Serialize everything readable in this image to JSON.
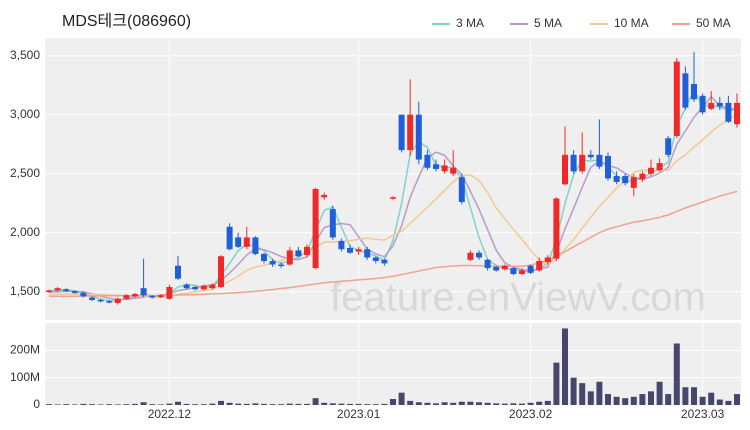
{
  "chart_data": [
    {
      "type": "candlestick",
      "title": "MDS테크(086960)",
      "watermark": "feature.enViewV.com",
      "up_color": "#f02828",
      "down_color": "#1f5fd8",
      "grid": true,
      "ylim": [
        1260,
        3650
      ],
      "yticks": [
        {
          "value": 1500,
          "label": "1,500"
        },
        {
          "value": 2000,
          "label": "2,000"
        },
        {
          "value": 2500,
          "label": "2,500"
        },
        {
          "value": 3000,
          "label": "3,000"
        },
        {
          "value": 3500,
          "label": "3,500"
        }
      ],
      "open": [
        1500,
        1510,
        1520,
        1505,
        1490,
        1450,
        1430,
        1420,
        1405,
        1440,
        1460,
        1530,
        1465,
        1455,
        1440,
        1720,
        1560,
        1540,
        1520,
        1530,
        1540,
        2050,
        1960,
        1880,
        1960,
        1820,
        1760,
        1730,
        1730,
        1850,
        1810,
        1700,
        2300,
        2200,
        1930,
        1870,
        1840,
        1860,
        1790,
        1770,
        2290,
        3000,
        2700,
        3000,
        2660,
        2580,
        2520,
        2500,
        2470,
        1770,
        1830,
        1770,
        1710,
        1690,
        1700,
        1650,
        1720,
        1680,
        1750,
        1780,
        2410,
        2660,
        2520,
        2660,
        2660,
        2650,
        2480,
        2480,
        2380,
        2450,
        2500,
        2530,
        2800,
        2820,
        3350,
        3260,
        3160,
        3050,
        3100,
        3100,
        2920
      ],
      "high": [
        1520,
        1540,
        1530,
        1510,
        1500,
        1460,
        1440,
        1430,
        1450,
        1480,
        1490,
        1780,
        1470,
        1480,
        1560,
        1800,
        1570,
        1550,
        1560,
        1570,
        1810,
        2080,
        2000,
        2050,
        1970,
        1830,
        1780,
        1750,
        1880,
        1880,
        1900,
        2380,
        2340,
        2230,
        1950,
        1900,
        1880,
        1880,
        1800,
        1780,
        2310,
        3000,
        3300,
        3110,
        2700,
        2620,
        2620,
        2700,
        2500,
        1850,
        1850,
        1780,
        1720,
        1730,
        1710,
        1700,
        1730,
        1790,
        1810,
        2300,
        2900,
        2700,
        2850,
        2700,
        2960,
        2680,
        2520,
        2500,
        2500,
        2520,
        2620,
        2630,
        2820,
        3480,
        3410,
        3530,
        3180,
        3200,
        3150,
        3160,
        3180
      ],
      "low": [
        1490,
        1500,
        1495,
        1480,
        1450,
        1420,
        1410,
        1400,
        1390,
        1430,
        1450,
        1455,
        1440,
        1445,
        1430,
        1600,
        1520,
        1510,
        1510,
        1520,
        1530,
        1850,
        1870,
        1860,
        1810,
        1740,
        1710,
        1700,
        1720,
        1790,
        1790,
        1690,
        2280,
        1940,
        1840,
        1820,
        1810,
        1770,
        1740,
        1720,
        2280,
        2680,
        2650,
        2580,
        2530,
        2520,
        2500,
        2480,
        2240,
        1760,
        1770,
        1680,
        1670,
        1680,
        1640,
        1640,
        1650,
        1670,
        1730,
        1760,
        2400,
        2500,
        2500,
        2620,
        2540,
        2440,
        2410,
        2400,
        2310,
        2430,
        2480,
        2520,
        2640,
        2800,
        3040,
        3110,
        3000,
        3040,
        3040,
        2930,
        2890
      ],
      "close": [
        1510,
        1530,
        1505,
        1490,
        1460,
        1430,
        1425,
        1410,
        1440,
        1470,
        1480,
        1470,
        1455,
        1470,
        1540,
        1610,
        1530,
        1520,
        1550,
        1560,
        1800,
        1860,
        1880,
        1960,
        1820,
        1760,
        1730,
        1720,
        1850,
        1800,
        1880,
        2370,
        2320,
        1960,
        1860,
        1830,
        1860,
        1790,
        1760,
        1740,
        2300,
        2700,
        3000,
        2620,
        2550,
        2540,
        2570,
        2550,
        2260,
        1830,
        1790,
        1700,
        1680,
        1720,
        1650,
        1680,
        1660,
        1760,
        1790,
        2290,
        2660,
        2520,
        2660,
        2640,
        2560,
        2460,
        2430,
        2420,
        2470,
        2500,
        2550,
        2590,
        2660,
        3450,
        3060,
        3130,
        3020,
        3100,
        3070,
        2940,
        3100
      ],
      "ma": [
        {
          "name": "3 MA",
          "color": "#7fd3c8",
          "values": [
            1505,
            1515,
            1515,
            1508,
            1485,
            1460,
            1438,
            1422,
            1425,
            1440,
            1463,
            1473,
            1468,
            1465,
            1488,
            1540,
            1560,
            1553,
            1533,
            1543,
            1637,
            1740,
            1847,
            1900,
            1887,
            1847,
            1770,
            1737,
            1767,
            1790,
            1843,
            2017,
            2190,
            2217,
            2047,
            1883,
            1850,
            1827,
            1803,
            1763,
            1933,
            2247,
            2667,
            2773,
            2723,
            2570,
            2553,
            2553,
            2460,
            2213,
            1960,
            1773,
            1723,
            1700,
            1683,
            1683,
            1663,
            1700,
            1737,
            1947,
            2247,
            2490,
            2613,
            2607,
            2620,
            2553,
            2483,
            2437,
            2440,
            2463,
            2507,
            2547,
            2600,
            2900,
            3057,
            3213,
            3070,
            3083,
            3063,
            3037,
            3037
          ]
        },
        {
          "name": "5 MA",
          "color": "#b59ccb",
          "values": [
            1495,
            1500,
            1505,
            1502,
            1499,
            1483,
            1462,
            1443,
            1433,
            1435,
            1445,
            1454,
            1463,
            1469,
            1483,
            1509,
            1521,
            1534,
            1550,
            1554,
            1592,
            1658,
            1730,
            1812,
            1864,
            1856,
            1830,
            1798,
            1776,
            1772,
            1796,
            1924,
            2044,
            2066,
            2078,
            2068,
            1966,
            1860,
            1820,
            1796,
            1890,
            2058,
            2300,
            2472,
            2634,
            2682,
            2656,
            2566,
            2494,
            2350,
            2200,
            2026,
            1852,
            1744,
            1708,
            1686,
            1678,
            1694,
            1708,
            1836,
            2032,
            2204,
            2384,
            2554,
            2608,
            2568,
            2550,
            2502,
            2468,
            2456,
            2474,
            2506,
            2554,
            2750,
            2862,
            2978,
            3064,
            3152,
            3076,
            3052,
            3046
          ]
        },
        {
          "name": "10 MA",
          "color": "#f1c994",
          "values": [
            1475,
            1478,
            1480,
            1481,
            1480,
            1478,
            1476,
            1472,
            1469,
            1467,
            1464,
            1458,
            1453,
            1451,
            1459,
            1477,
            1488,
            1499,
            1510,
            1519,
            1551,
            1590,
            1632,
            1681,
            1709,
            1724,
            1744,
            1764,
            1794,
            1818,
            1826,
            1877,
            1921,
            1921,
            1925,
            1932,
            1945,
            1952,
            1943,
            1937,
            1979,
            2012,
            2080,
            2146,
            2215,
            2286,
            2357,
            2433,
            2483,
            2492,
            2441,
            2341,
            2209,
            2119,
            2029,
            1943,
            1852,
            1773,
            1726,
            1772,
            1859,
            1941,
            2039,
            2131,
            2222,
            2300,
            2377,
            2443,
            2511,
            2532,
            2521,
            2528,
            2528,
            2609,
            2659,
            2726,
            2785,
            2853,
            2913,
            2957,
            3012
          ]
        },
        {
          "name": "50 MA",
          "color": "#f4a08e",
          "values": [
            1460,
            1461,
            1462,
            1462,
            1463,
            1463,
            1464,
            1465,
            1465,
            1466,
            1466,
            1467,
            1467,
            1468,
            1470,
            1472,
            1474,
            1476,
            1478,
            1481,
            1484,
            1488,
            1492,
            1497,
            1503,
            1510,
            1518,
            1527,
            1535,
            1545,
            1555,
            1565,
            1575,
            1582,
            1588,
            1594,
            1600,
            1606,
            1612,
            1620,
            1630,
            1645,
            1660,
            1675,
            1690,
            1705,
            1712,
            1718,
            1722,
            1722,
            1720,
            1718,
            1717,
            1716,
            1715,
            1716,
            1725,
            1745,
            1770,
            1800,
            1840,
            1880,
            1920,
            1960,
            2000,
            2030,
            2050,
            2070,
            2090,
            2100,
            2115,
            2130,
            2150,
            2180,
            2210,
            2235,
            2260,
            2285,
            2310,
            2330,
            2350
          ]
        }
      ]
    },
    {
      "type": "bar",
      "color": "#47476b",
      "grid": true,
      "ylim": [
        0,
        300000000
      ],
      "yticks": [
        0,
        {
          "value": 100000000,
          "label": "100M"
        },
        {
          "value": 200000000,
          "label": "200M"
        }
      ],
      "categories": [
        null,
        null,
        null,
        null,
        null,
        null,
        null,
        null,
        null,
        null,
        null,
        null,
        null,
        null,
        "2022.12",
        null,
        null,
        null,
        null,
        null,
        null,
        null,
        null,
        null,
        null,
        null,
        null,
        null,
        null,
        null,
        null,
        null,
        null,
        null,
        null,
        null,
        "2023.01",
        null,
        null,
        null,
        null,
        null,
        null,
        null,
        null,
        null,
        null,
        null,
        null,
        null,
        null,
        null,
        null,
        null,
        null,
        null,
        "2023.02",
        null,
        null,
        null,
        null,
        null,
        null,
        null,
        null,
        null,
        null,
        null,
        null,
        null,
        null,
        null,
        null,
        null,
        null,
        null,
        "2023.03",
        null,
        null,
        null,
        null
      ],
      "values": [
        3000000,
        2000000,
        3000000,
        2000000,
        4000000,
        3000000,
        2000000,
        3000000,
        2000000,
        3000000,
        4000000,
        10000000,
        3000000,
        2000000,
        5000000,
        12000000,
        4000000,
        3000000,
        3000000,
        5000000,
        15000000,
        8000000,
        5000000,
        4000000,
        6000000,
        4000000,
        3000000,
        3000000,
        5000000,
        4000000,
        4000000,
        25000000,
        8000000,
        6000000,
        5000000,
        4000000,
        4000000,
        3000000,
        3000000,
        4000000,
        22000000,
        45000000,
        15000000,
        10000000,
        8000000,
        6000000,
        10000000,
        8000000,
        12000000,
        12000000,
        10000000,
        8000000,
        6000000,
        5000000,
        6000000,
        5000000,
        8000000,
        12000000,
        15000000,
        155000000,
        280000000,
        100000000,
        80000000,
        50000000,
        85000000,
        40000000,
        30000000,
        25000000,
        30000000,
        40000000,
        50000000,
        85000000,
        40000000,
        225000000,
        65000000,
        65000000,
        30000000,
        45000000,
        20000000,
        15000000,
        40000000
      ]
    }
  ]
}
